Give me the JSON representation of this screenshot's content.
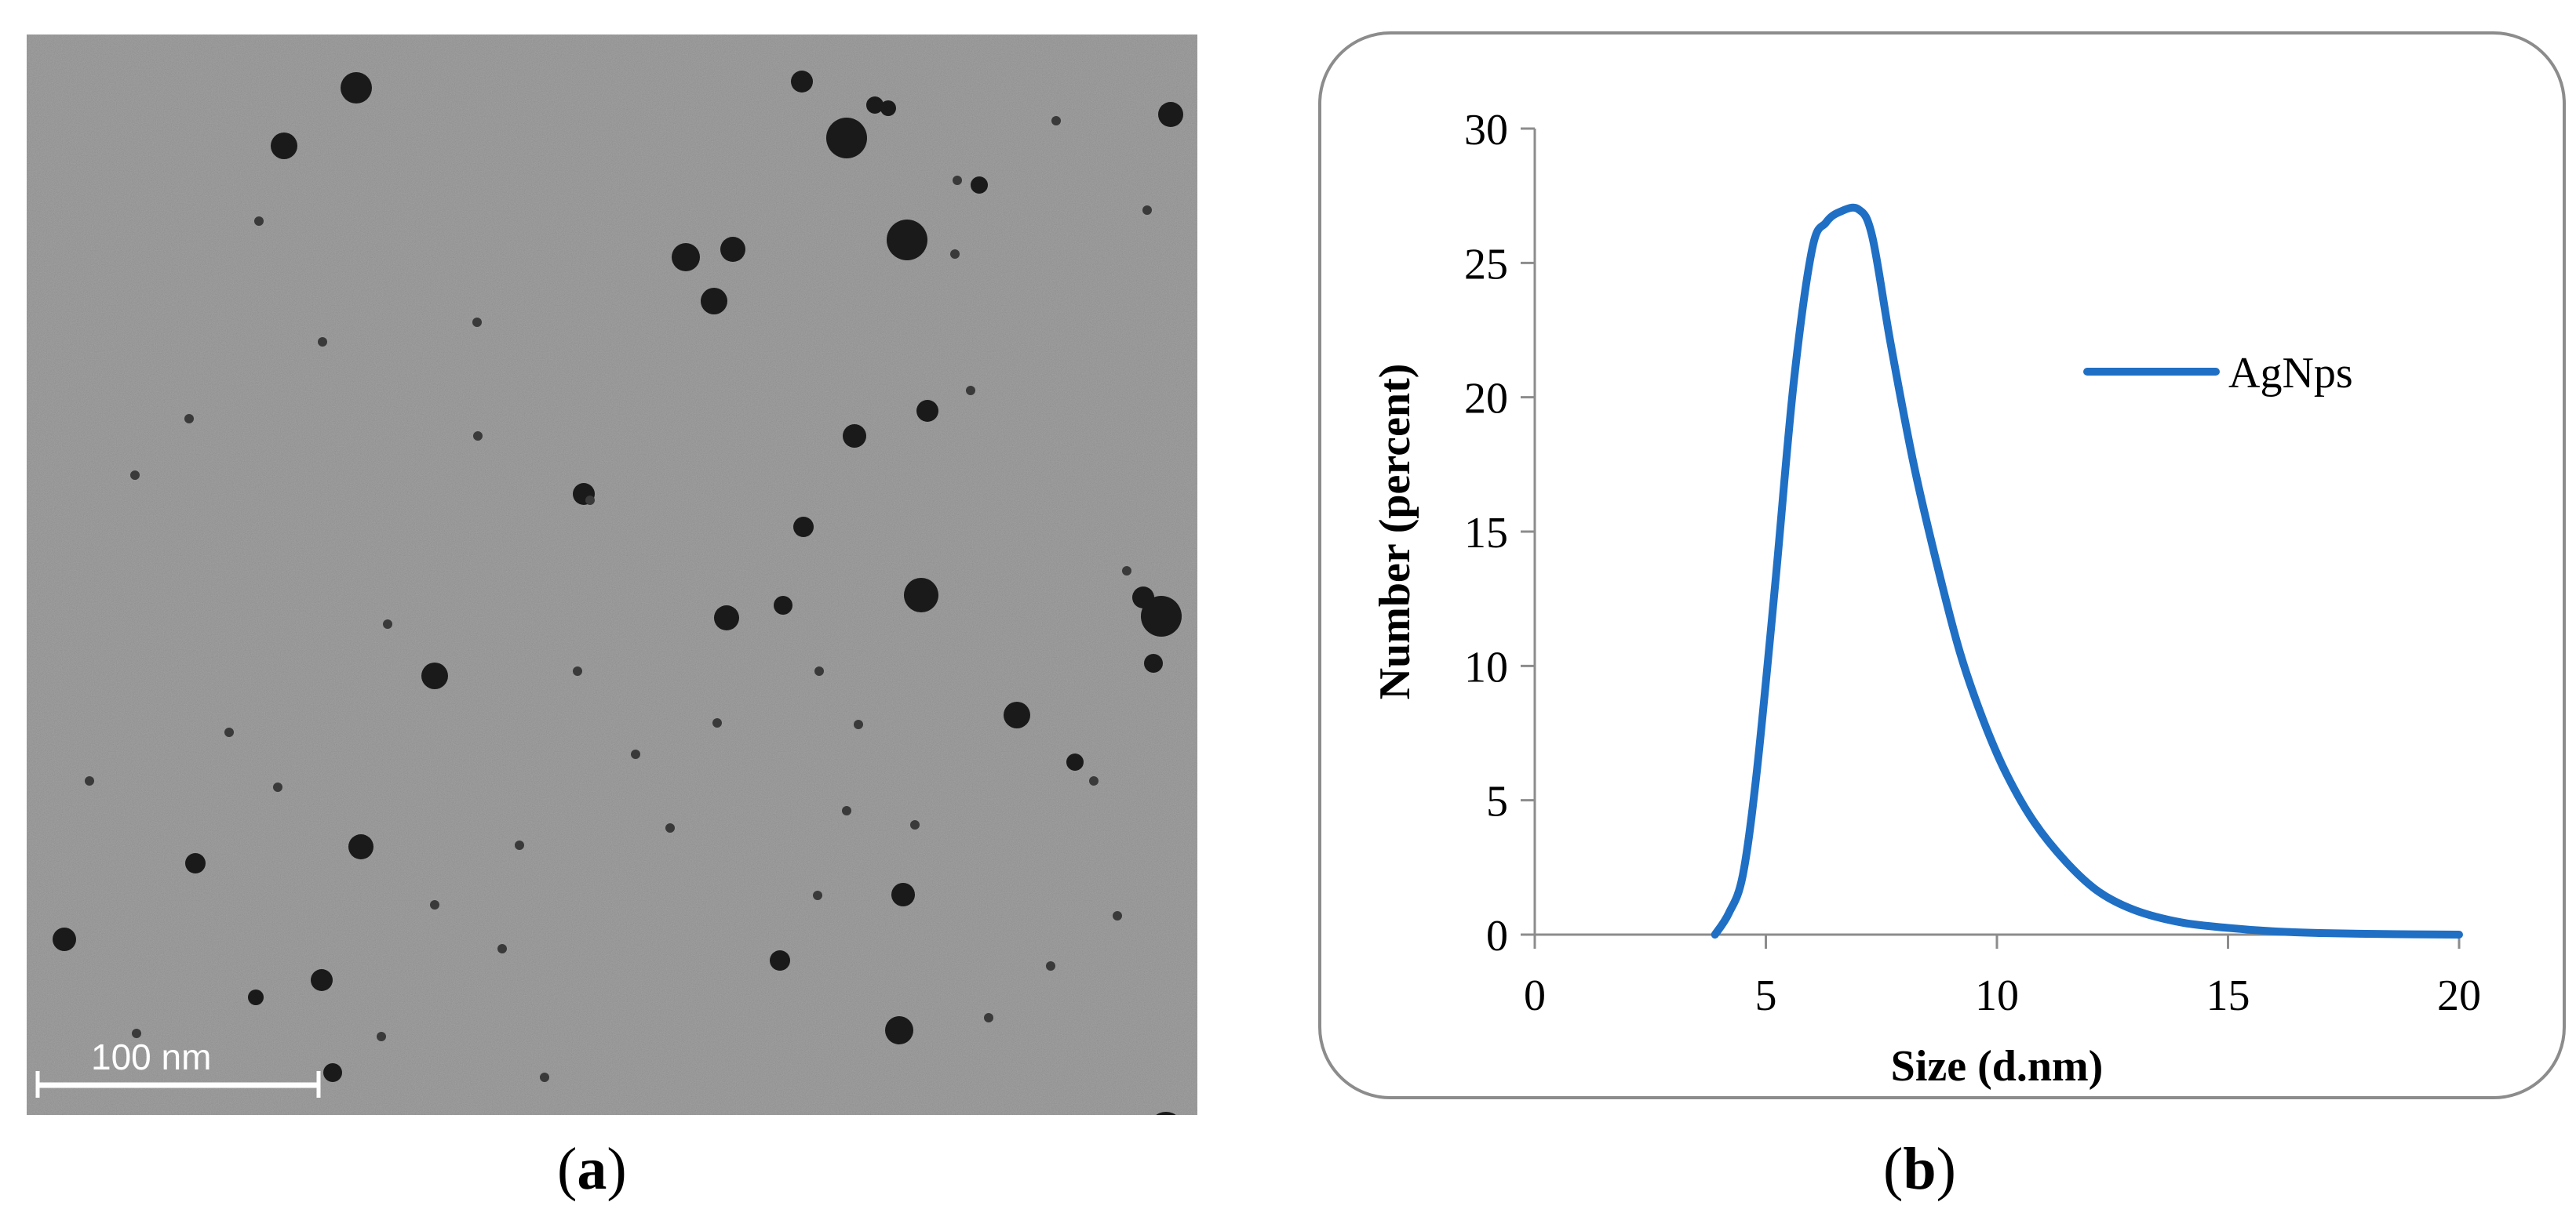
{
  "panel_a": {
    "scale_bar_label": "100 nm",
    "caption_letter": "a",
    "background_color": "#a6a6a6",
    "particle_color": "#1a1a1a"
  },
  "panel_b": {
    "caption_letter": "b"
  },
  "chart_data": {
    "type": "line",
    "title": "",
    "xlabel": "Size (d.nm)",
    "ylabel": "Number (percent)",
    "xlim": [
      0,
      20
    ],
    "ylim": [
      0,
      30
    ],
    "x_ticks": [
      0,
      5,
      10,
      15,
      20
    ],
    "y_ticks": [
      0,
      5,
      10,
      15,
      20,
      25,
      30
    ],
    "grid": false,
    "legend_position": "right",
    "series": [
      {
        "name": "AgNps",
        "color": "#1f6fc5",
        "x": [
          3.9,
          4.2,
          4.5,
          4.8,
          5.2,
          5.6,
          6.0,
          6.3,
          6.6,
          7.0,
          7.3,
          7.7,
          8.2,
          8.7,
          9.2,
          9.7,
          10.2,
          10.8,
          11.5,
          12.2,
          13.0,
          14.0,
          15.0,
          16.0,
          17.0,
          18.0,
          19.0,
          20.0
        ],
        "y": [
          0.0,
          0.8,
          2.2,
          6.0,
          13.0,
          20.5,
          25.5,
          26.5,
          26.9,
          27.0,
          26.0,
          22.0,
          17.5,
          13.8,
          10.5,
          8.0,
          6.0,
          4.2,
          2.7,
          1.6,
          0.9,
          0.45,
          0.25,
          0.12,
          0.06,
          0.03,
          0.01,
          0.0
        ]
      }
    ]
  }
}
